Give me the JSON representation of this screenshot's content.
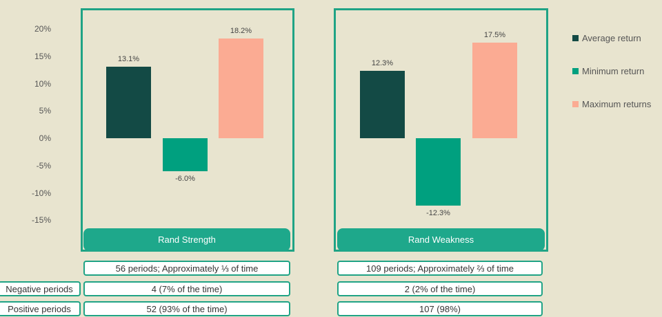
{
  "chart_data": {
    "type": "bar",
    "ylim": [
      -15,
      20
    ],
    "yticks": [
      "20%",
      "15%",
      "10%",
      "5%",
      "0%",
      "-5%",
      "-10%",
      "-15%"
    ],
    "ytick_values": [
      20,
      15,
      10,
      5,
      0,
      -5,
      -10,
      -15
    ],
    "categories": [
      "Rand Strength",
      "Rand Weakness"
    ],
    "series": [
      {
        "name": "Average return",
        "color": "#134a45",
        "values": [
          13.1,
          12.3
        ],
        "labels": [
          "13.1%",
          "12.3%"
        ]
      },
      {
        "name": "Minimum return",
        "color": "#00a07f",
        "values": [
          -6.0,
          -12.3
        ],
        "labels": [
          "-6.0%",
          "-12.3%"
        ]
      },
      {
        "name": "Maximum returns",
        "color": "#fbab93",
        "values": [
          18.2,
          17.5
        ],
        "labels": [
          "18.2%",
          "17.5%"
        ]
      }
    ],
    "legend": "right",
    "grid": false
  },
  "table": {
    "row_labels": [
      "Negative periods",
      "Positive periods"
    ],
    "columns": [
      {
        "periods": "56 periods; Approximately ⅓ of time",
        "negative": "4 (7% of the time)",
        "positive": "52 (93% of the time)"
      },
      {
        "periods": "109 periods; Approximately ⅔ of time",
        "negative": "2 (2% of the time)",
        "positive": "107 (98%)"
      }
    ]
  }
}
